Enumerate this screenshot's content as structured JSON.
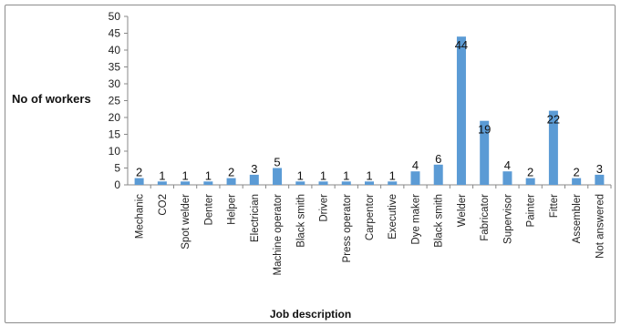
{
  "chart_data": {
    "type": "bar",
    "title": "",
    "xlabel": "Job description",
    "ylabel": "No of workers",
    "ylim": [
      0,
      50
    ],
    "yticks": [
      0,
      5,
      10,
      15,
      20,
      25,
      30,
      35,
      40,
      45,
      50
    ],
    "grid": false,
    "legend": "none",
    "bar_color": "#5b9bd5",
    "categories": [
      "Mechanic",
      "CO2",
      "Spot welder",
      "Denter",
      "Helper",
      "Electrician",
      "Machine operator",
      "Black smith",
      "Driver",
      "Press operator",
      "Carpentor",
      "Executive",
      "Dye maker",
      "Black smith",
      "Welder",
      "Fabricator",
      "Supervisor",
      "Painter",
      "Fitter",
      "Assembler",
      "Not answered"
    ],
    "values": [
      2,
      1,
      1,
      1,
      2,
      3,
      5,
      1,
      1,
      1,
      1,
      1,
      4,
      6,
      44,
      19,
      4,
      2,
      22,
      2,
      3
    ]
  }
}
